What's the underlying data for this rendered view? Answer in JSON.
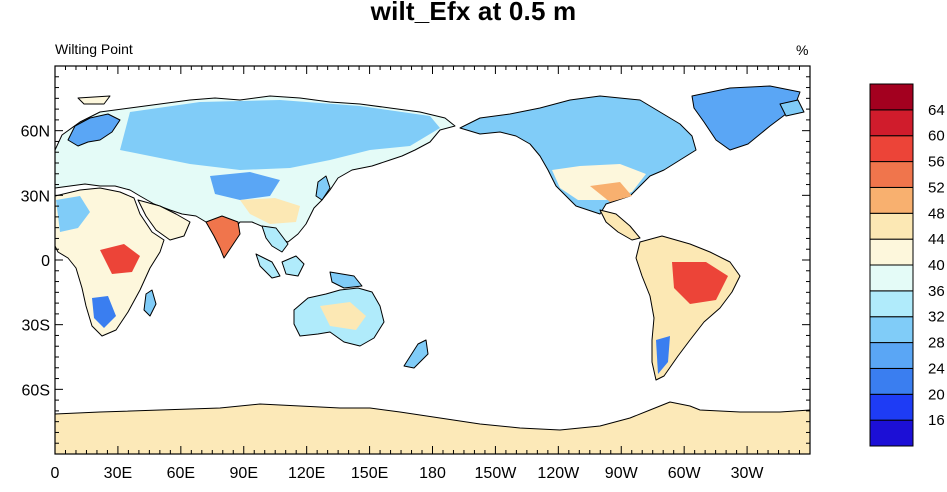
{
  "title": "wilt_Efx at 0.5 m",
  "left_string": "Wilting Point",
  "units": "%",
  "colors": {
    "land_default": "#fdf5d4",
    "antarctica": "#fce9b8",
    "ocean": "#ffffff",
    "coast": "#000000"
  },
  "chart_data": {
    "type": "heatmap",
    "projection": "cylindrical-equidistant",
    "central_longitude": 180,
    "x_ticks": [
      "0",
      "30E",
      "60E",
      "90E",
      "120E",
      "150E",
      "180",
      "150W",
      "120W",
      "90W",
      "60W",
      "30W"
    ],
    "y_ticks": [
      "60N",
      "30N",
      "0",
      "30S",
      "60S"
    ],
    "colorbar": {
      "labels": [
        "16",
        "20",
        "24",
        "28",
        "32",
        "36",
        "40",
        "44",
        "48",
        "52",
        "56",
        "60",
        "64"
      ],
      "colors": [
        "#1c0fd6",
        "#1e3cf5",
        "#3a7ef0",
        "#5aa6f5",
        "#80ccf8",
        "#b0ebfb",
        "#e4fbf7",
        "#fdf7dc",
        "#fce8b4",
        "#f8b06f",
        "#f0754c",
        "#ec4438",
        "#d01c2c",
        "#a3001f"
      ]
    }
  }
}
